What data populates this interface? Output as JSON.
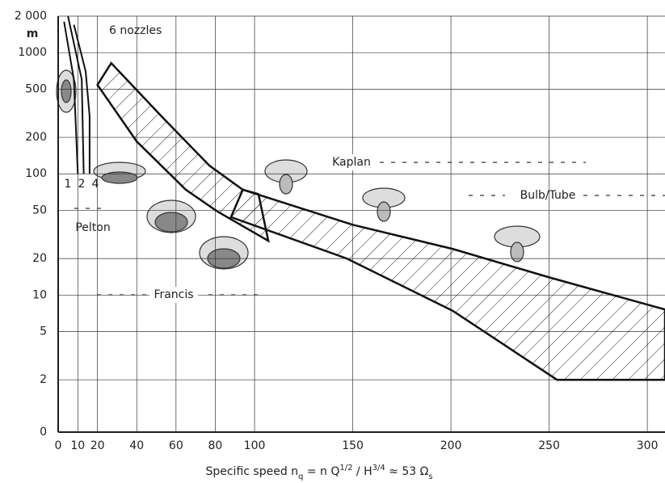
{
  "chart_data": {
    "type": "region",
    "log_y": true,
    "grid": true,
    "y_unit": "m",
    "xlim": [
      0,
      309
    ],
    "ylim": [
      0.74,
      2000
    ],
    "xticks": [
      0,
      10,
      20,
      40,
      60,
      80,
      100,
      150,
      200,
      250,
      300
    ],
    "yticks": [
      0,
      2,
      5,
      10,
      20,
      50,
      100,
      200,
      500,
      {
        "value": 1000,
        "label": "1000"
      },
      {
        "value": 2000,
        "label": "2 000"
      }
    ],
    "x_label_parts": [
      {
        "text": "Specific speed n",
        "style": "normal"
      },
      {
        "text": "q",
        "style": "sub"
      },
      {
        "text": " = n Q",
        "style": "normal"
      },
      {
        "text": "1/2",
        "style": "sup"
      },
      {
        "text": " / H",
        "style": "normal"
      },
      {
        "text": "3/4",
        "style": "sup"
      },
      {
        "text": " ≈ 53 Ω",
        "style": "normal"
      },
      {
        "text": "s",
        "style": "sub"
      }
    ],
    "regions": [
      {
        "name": "Francis",
        "color": "#111",
        "x": [
          27,
          53,
          77,
          94,
          102,
          107,
          81,
          65,
          40,
          20
        ],
        "y": [
          820,
          294,
          117,
          74,
          68,
          28,
          49,
          74,
          185,
          542
        ]
      },
      {
        "name": "Kaplan",
        "color": "#111",
        "x": [
          94,
          150,
          201,
          250,
          309,
          309,
          254,
          201,
          147,
          88
        ],
        "y": [
          74,
          38,
          24,
          14,
          7.6,
          2,
          2,
          7.4,
          20,
          44
        ]
      }
    ],
    "series": [
      {
        "name": "1",
        "color": "#111",
        "x": [
          3,
          8,
          10
        ],
        "y": [
          1800,
          600,
          100
        ]
      },
      {
        "name": "2",
        "color": "#111",
        "x": [
          5,
          12,
          13
        ],
        "y": [
          2000,
          600,
          100
        ]
      },
      {
        "name": "4",
        "color": "#111",
        "x": [
          8,
          14,
          16,
          16
        ],
        "y": [
          1700,
          700,
          300,
          100
        ]
      }
    ],
    "annotations": [
      "6 nozzles",
      "Pelton",
      "Bulb/Tube"
    ]
  }
}
